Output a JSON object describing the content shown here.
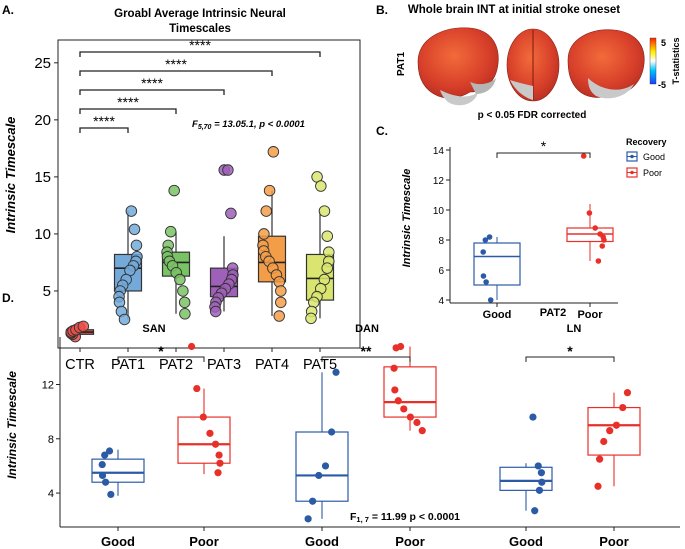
{
  "panel_labels": {
    "a": "A.",
    "b": "B.",
    "c": "C.",
    "d": "D."
  },
  "chart_data": [
    {
      "id": "A",
      "type": "box",
      "title": [
        "Groabl Average Intrinsic Neural",
        "Timescales"
      ],
      "ylabel": "Intrinsic Timescale",
      "xlabel": "",
      "categories": [
        "CTR",
        "PAT1",
        "PAT2",
        "PAT3",
        "PAT4",
        "PAT5"
      ],
      "ylim": [
        0,
        27
      ],
      "yticks": [
        5,
        10,
        15,
        20,
        25
      ],
      "colors": [
        "#e8302a",
        "#5a9bd3",
        "#63b84a",
        "#8e44ad",
        "#f28c28",
        "#d4e157"
      ],
      "boxes": [
        {
          "q1": 1.2,
          "median": 1.4,
          "q3": 1.6,
          "low": 1.0,
          "high": 1.9
        },
        {
          "q1": 5.0,
          "median": 7.0,
          "q3": 8.2,
          "low": 2.5,
          "high": 12.0
        },
        {
          "q1": 6.3,
          "median": 7.5,
          "q3": 8.4,
          "low": 3.0,
          "high": 10.2
        },
        {
          "q1": 4.5,
          "median": 5.4,
          "q3": 7.0,
          "low": 3.2,
          "high": 9.8
        },
        {
          "q1": 5.8,
          "median": 7.5,
          "q3": 9.8,
          "low": 2.8,
          "high": 13.8
        },
        {
          "q1": 4.2,
          "median": 6.1,
          "q3": 8.2,
          "low": 2.6,
          "high": 12.0
        }
      ],
      "points": [
        [
          1.0,
          1.2,
          1.3,
          1.4,
          1.5,
          1.6,
          1.8,
          1.9
        ],
        [
          12.0,
          10.4,
          9.0,
          8.0,
          7.6,
          7.2,
          6.8,
          6.0,
          5.5,
          5.0,
          4.5,
          4.0,
          3.2,
          2.5
        ],
        [
          13.8,
          10.2,
          9.0,
          8.4,
          8.0,
          7.6,
          7.2,
          6.6,
          6.0,
          5.0,
          4.0,
          3.0
        ],
        [
          15.6,
          15.6,
          11.8,
          7.0,
          6.4,
          6.0,
          5.6,
          5.2,
          4.8,
          4.4,
          4.0,
          3.6,
          3.2
        ],
        [
          17.2,
          13.8,
          12.0,
          10.0,
          9.0,
          8.5,
          8.0,
          7.6,
          7.0,
          6.4,
          5.8,
          5.0,
          4.0,
          2.8
        ],
        [
          15.0,
          14.2,
          12.0,
          9.8,
          8.4,
          7.6,
          7.0,
          6.0,
          5.2,
          4.5,
          4.0,
          3.2,
          2.6
        ]
      ],
      "significance": [
        {
          "from": "CTR",
          "to": "PAT1",
          "label": "****"
        },
        {
          "from": "CTR",
          "to": "PAT2",
          "label": "****"
        },
        {
          "from": "CTR",
          "to": "PAT3",
          "label": "****"
        },
        {
          "from": "CTR",
          "to": "PAT4",
          "label": "****"
        },
        {
          "from": "CTR",
          "to": "PAT5",
          "label": "****"
        }
      ],
      "stat_prefix": "F",
      "stat_sub": "5,70",
      "stat_value": " = 13.05.1, p < 0.0001"
    },
    {
      "id": "B",
      "type": "image",
      "title": "Whole brain INT at initial stroke oneset",
      "row_label": "PAT1",
      "caption": "p < 0.05 FDR corrected",
      "colorbar": {
        "max": "5",
        "min": "-5",
        "label": "T-statistics",
        "colors": [
          "#1a3cff",
          "#00c8ff",
          "#ffffff",
          "#ffee00",
          "#ff2200"
        ]
      }
    },
    {
      "id": "C",
      "type": "box",
      "ylabel": "Intrinsic Timescale",
      "xlabel": "PAT2",
      "categories": [
        "Good",
        "Poor"
      ],
      "ylim": [
        3.8,
        14.2
      ],
      "yticks": [
        4,
        6,
        8,
        10,
        12,
        14
      ],
      "colors": [
        "#2c5ba6",
        "#e8302a"
      ],
      "legend": {
        "title": "Recovery",
        "entries": [
          "Good",
          "Poor"
        ],
        "position": "top-right"
      },
      "boxes": [
        {
          "q1": 5.0,
          "median": 6.9,
          "q3": 7.8,
          "low": 4.0,
          "high": 8.2
        },
        {
          "q1": 7.9,
          "median": 8.4,
          "q3": 8.8,
          "low": 6.6,
          "high": 10.4
        }
      ],
      "points": [
        [
          8.2,
          8.0,
          7.2,
          5.6,
          5.2,
          4.0
        ],
        [
          13.6,
          9.8,
          8.8,
          8.4,
          8.2,
          8.0,
          7.6,
          6.6
        ]
      ],
      "significance": [
        {
          "from": "Good",
          "to": "Poor",
          "label": "*"
        }
      ]
    },
    {
      "id": "D",
      "type": "box",
      "ylabel": "Intrinsic Timescale",
      "ylim": [
        1.5,
        15.5
      ],
      "yticks": [
        4,
        8,
        12
      ],
      "colors": [
        "#2c5ba6",
        "#e8302a"
      ],
      "stat_prefix": "F",
      "stat_sub": "1,  7",
      "stat_value": " = 11.99 p < 0.0001",
      "facets": [
        {
          "title": "SAN",
          "categories": [
            "Good",
            "Poor"
          ],
          "boxes": [
            {
              "q1": 4.8,
              "median": 5.5,
              "q3": 6.5,
              "low": 3.8,
              "high": 7.2
            },
            {
              "q1": 6.2,
              "median": 7.6,
              "q3": 9.6,
              "low": 5.4,
              "high": 11.7
            }
          ],
          "points": [
            [
              7.1,
              6.8,
              6.1,
              5.3,
              4.8,
              3.9
            ],
            [
              14.8,
              11.7,
              9.6,
              8.4,
              7.6,
              6.8,
              6.2,
              5.5
            ]
          ],
          "significance": {
            "label": "*"
          }
        },
        {
          "title": "DAN",
          "categories": [
            "Good",
            "Poor"
          ],
          "boxes": [
            {
              "q1": 3.4,
              "median": 5.3,
              "q3": 8.5,
              "low": 2.1,
              "high": 12.9
            },
            {
              "q1": 9.6,
              "median": 10.7,
              "q3": 13.3,
              "low": 8.6,
              "high": 14.8
            }
          ],
          "points": [
            [
              12.9,
              8.5,
              6.0,
              5.3,
              3.4,
              2.1
            ],
            [
              14.8,
              14.7,
              13.2,
              11.6,
              10.8,
              10.2,
              9.6,
              9.2,
              8.6
            ]
          ],
          "significance": {
            "label": "**"
          }
        },
        {
          "title": "LN",
          "categories": [
            "Good",
            "Poor"
          ],
          "boxes": [
            {
              "q1": 4.2,
              "median": 4.9,
              "q3": 5.9,
              "low": 2.7,
              "high": 6.2
            },
            {
              "q1": 6.8,
              "median": 9.0,
              "q3": 10.3,
              "low": 4.5,
              "high": 11.4
            }
          ],
          "points": [
            [
              9.6,
              6.0,
              5.5,
              4.8,
              4.2,
              2.7
            ],
            [
              11.4,
              10.3,
              9.0,
              8.6,
              7.8,
              6.5,
              4.5
            ]
          ],
          "significance": {
            "label": "*"
          }
        }
      ]
    }
  ]
}
